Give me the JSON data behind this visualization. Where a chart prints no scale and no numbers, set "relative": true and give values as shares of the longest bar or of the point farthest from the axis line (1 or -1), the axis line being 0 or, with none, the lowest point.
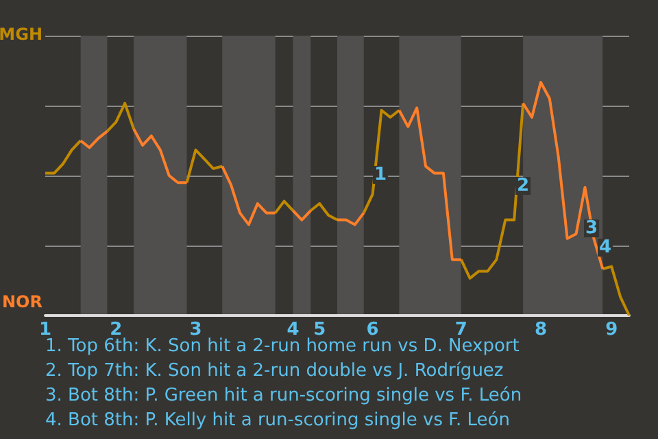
{
  "chart_data": {
    "type": "line",
    "relative": true,
    "categories": [
      "1",
      null,
      null,
      null,
      null,
      null,
      null,
      null,
      "2",
      null,
      null,
      null,
      null,
      null,
      null,
      null,
      null,
      "3",
      null,
      null,
      null,
      null,
      null,
      null,
      null,
      null,
      null,
      null,
      "4",
      null,
      null,
      "5",
      null,
      null,
      null,
      null,
      null,
      "6",
      null,
      null,
      null,
      null,
      null,
      null,
      null,
      null,
      null,
      "7",
      null,
      null,
      null,
      null,
      null,
      null,
      null,
      null,
      "8",
      null,
      null,
      null,
      null,
      null,
      null,
      null,
      "9",
      null,
      null
    ],
    "series": [
      {
        "color": "#c08a00",
        "values": [
          0.61,
          0.61,
          0.65,
          0.71,
          0.75,
          null,
          null,
          0.79,
          0.83,
          0.91,
          0.8,
          null,
          null,
          null,
          null,
          null,
          0.57,
          0.71,
          0.67,
          0.63,
          0.64,
          null,
          null,
          null,
          null,
          null,
          0.44,
          0.49,
          0.45,
          null,
          0.45,
          0.48,
          0.43,
          0.41,
          null,
          null,
          0.44,
          0.52,
          0.88,
          0.85,
          0.88,
          null,
          null,
          null,
          null,
          null,
          null,
          0.24,
          0.16,
          0.19,
          0.19,
          0.24,
          0.41,
          0.41,
          0.91,
          null,
          null,
          null,
          null,
          null,
          null,
          null,
          null,
          0.2,
          0.21,
          0.08,
          0
        ],
        "line_style": "solid"
      },
      {
        "color": "#ff7f2a",
        "values": [
          null,
          null,
          null,
          null,
          0.75,
          0.72,
          0.76,
          0.79,
          null,
          null,
          0.8,
          0.73,
          0.77,
          0.71,
          0.6,
          0.57,
          0.57,
          null,
          null,
          null,
          0.64,
          0.56,
          0.44,
          0.39,
          0.48,
          0.44,
          0.44,
          null,
          0.45,
          0.41,
          0.45,
          null,
          null,
          0.41,
          0.41,
          0.39,
          0.44,
          null,
          null,
          null,
          0.88,
          0.81,
          0.89,
          0.64,
          0.61,
          0.61,
          0.24,
          0.24,
          null,
          null,
          null,
          null,
          null,
          null,
          0.91,
          0.85,
          1,
          0.93,
          0.68,
          0.33,
          0.35,
          0.55,
          0.33,
          0.2,
          null,
          null,
          null
        ],
        "line_style": "solid"
      }
    ],
    "grid": "y",
    "marker": "none",
    "annotations": [
      "MGH",
      "NOR",
      "1",
      "2",
      "3",
      "4",
      "1. Top 6th: K. Son hit a 2-run home run vs D. Nexport",
      "2. Top 7th: K. Son hit a 2-run double vs J. Rodríguez",
      "3. Bot 8th: P. Green hit a run-scoring single vs F. León",
      "4. Bot 8th: P. Kelly hit a run-scoring single vs F. León"
    ]
  }
}
